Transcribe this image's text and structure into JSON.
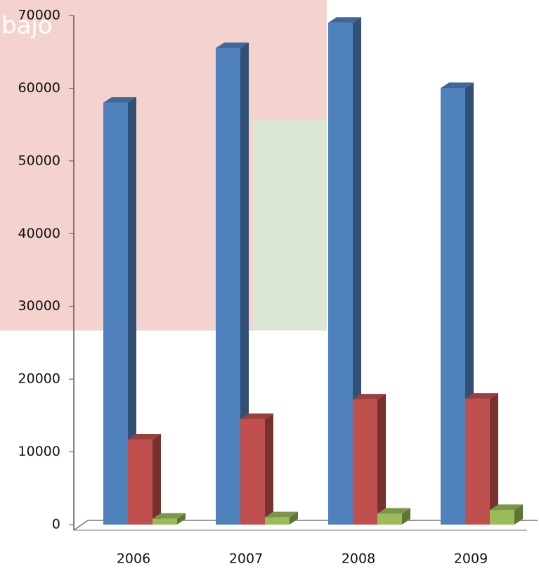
{
  "chart_data": {
    "type": "bar3d",
    "watermark_text": "bajo",
    "categories": [
      "2006",
      "2007",
      "2008",
      "2009"
    ],
    "series": [
      {
        "color": "#4f81bd",
        "values": [
          58000,
          65500,
          69000,
          60000
        ]
      },
      {
        "color": "#c0504d",
        "values": [
          11700,
          14500,
          17200,
          17300
        ]
      },
      {
        "color": "#9bbb59",
        "values": [
          800,
          1000,
          1500,
          2000
        ]
      }
    ],
    "ylim": [
      0,
      70000
    ],
    "yticks": [
      0,
      10000,
      20000,
      30000,
      40000,
      50000,
      60000,
      70000
    ]
  }
}
